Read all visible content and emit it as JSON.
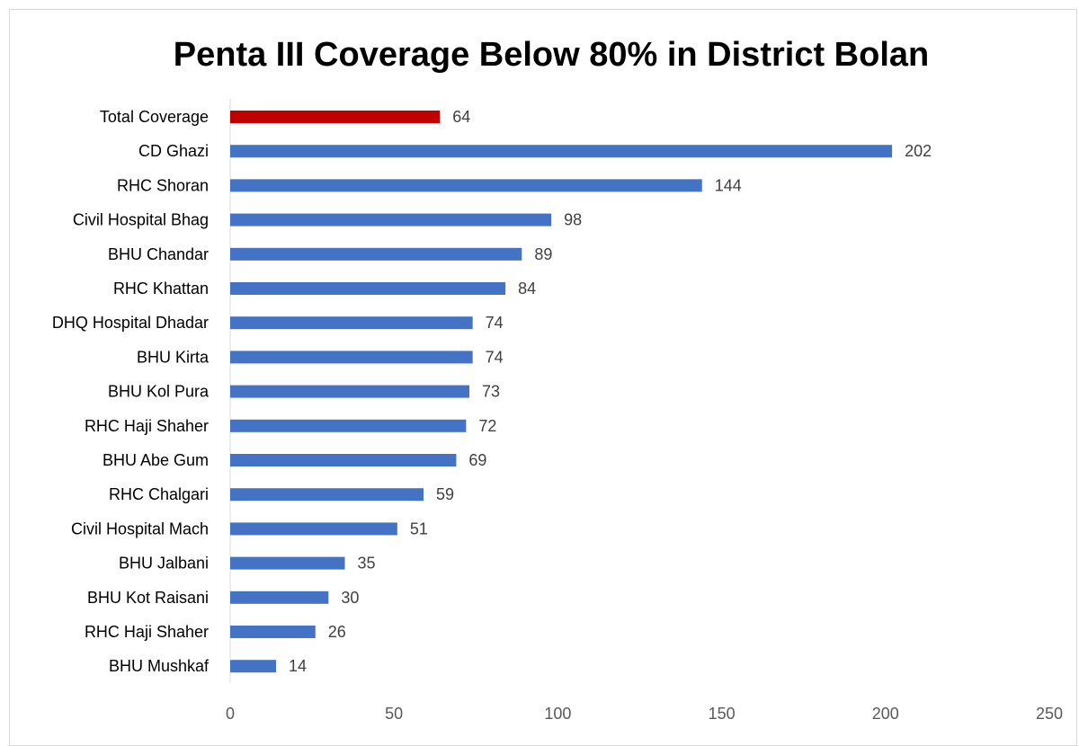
{
  "chart_data": {
    "type": "bar",
    "orientation": "horizontal",
    "title": "Penta III Coverage Below 80% in District Bolan",
    "xlabel": "",
    "ylabel": "",
    "categories": [
      "Total Coverage",
      "CD Ghazi",
      "RHC Shoran",
      "Civil Hospital Bhag",
      "BHU Chandar",
      "RHC Khattan",
      "DHQ Hospital Dhadar",
      "BHU Kirta",
      "BHU Kol Pura",
      "RHC Haji Shaher",
      "BHU Abe Gum",
      "RHC Chalgari",
      "Civil Hospital Mach",
      "BHU Jalbani",
      "BHU Kot Raisani",
      "RHC Haji Shaher",
      "BHU Mushkaf"
    ],
    "values": [
      64,
      202,
      144,
      98,
      89,
      84,
      74,
      74,
      73,
      72,
      69,
      59,
      51,
      35,
      30,
      26,
      14
    ],
    "highlight_index": 0,
    "colors": {
      "bar": "#4472c4",
      "highlight": "#c00000"
    },
    "xlim": [
      0,
      250
    ],
    "xticks": [
      0,
      50,
      100,
      150,
      200,
      250
    ],
    "grid": false,
    "data_labels": true
  }
}
